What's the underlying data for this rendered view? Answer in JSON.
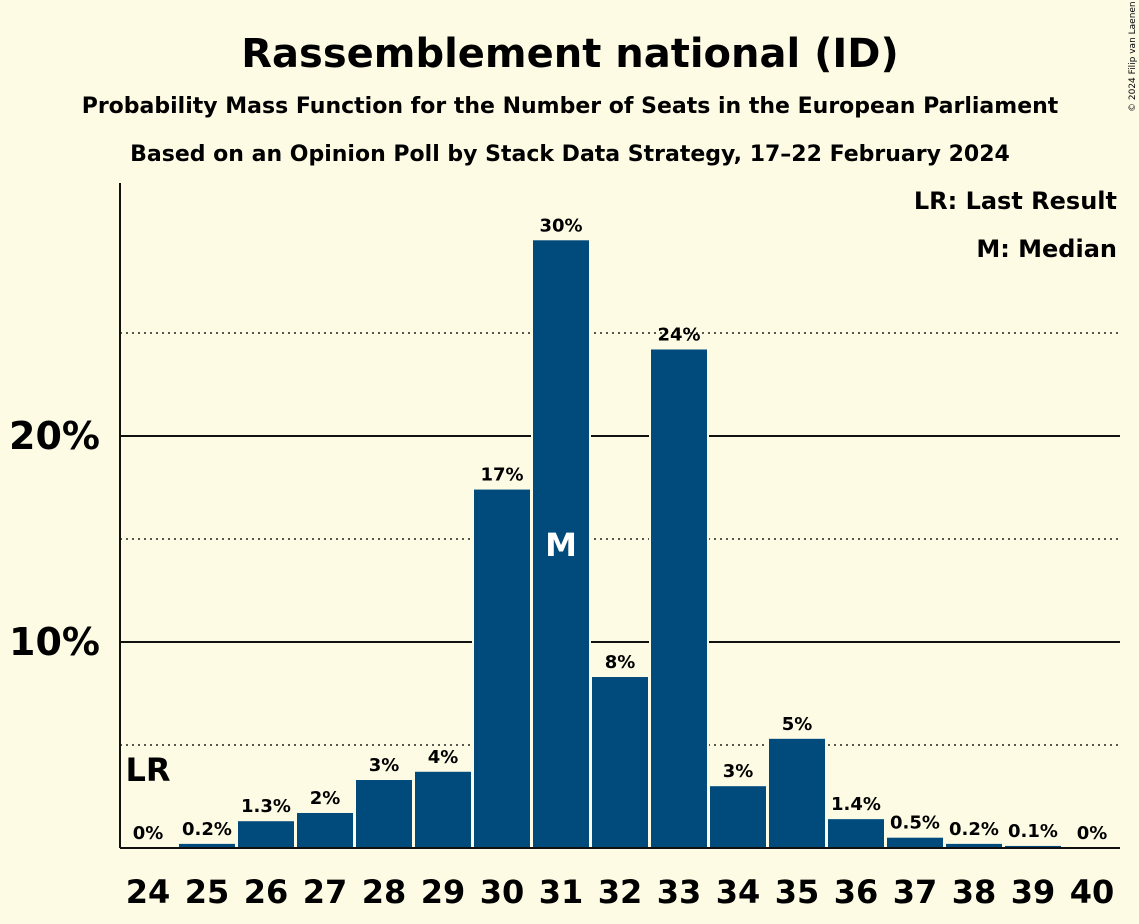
{
  "title": "Rassemblement national (ID)",
  "subtitle": "Probability Mass Function for the Number of Seats in the European Parliament",
  "subtitle2": "Based on an Opinion Poll by Stack Data Strategy, 17–22 February 2024",
  "copyright": "© 2024 Filip van Laenen",
  "legend": {
    "last_result": "LR: Last Result",
    "median": "M: Median"
  },
  "colors": {
    "bar": "#004a7c",
    "background": "#fefbe5"
  },
  "chart_data": {
    "type": "bar",
    "categories": [
      "24",
      "25",
      "26",
      "27",
      "28",
      "29",
      "30",
      "31",
      "32",
      "33",
      "34",
      "35",
      "36",
      "37",
      "38",
      "39",
      "40"
    ],
    "values": [
      0,
      0.2,
      1.3,
      1.7,
      3.3,
      3.7,
      17.4,
      29.5,
      8.3,
      24.2,
      3.0,
      5.3,
      1.4,
      0.5,
      0.2,
      0.1,
      0
    ],
    "data_labels": [
      "0%",
      "0.2%",
      "1.3%",
      "2%",
      "3%",
      "4%",
      "17%",
      "30%",
      "8%",
      "24%",
      "3%",
      "5%",
      "1.4%",
      "0.5%",
      "0.2%",
      "0.1%",
      "0%"
    ],
    "yticks": [
      10,
      20
    ],
    "ytick_labels": [
      "10%",
      "20%"
    ],
    "minor_gridlines": [
      5,
      15,
      25
    ],
    "ylim": [
      0,
      32.2
    ],
    "last_result": {
      "category": "24",
      "label": "LR"
    },
    "median": {
      "category": "31",
      "label": "M"
    },
    "legend_position": "top-right"
  }
}
